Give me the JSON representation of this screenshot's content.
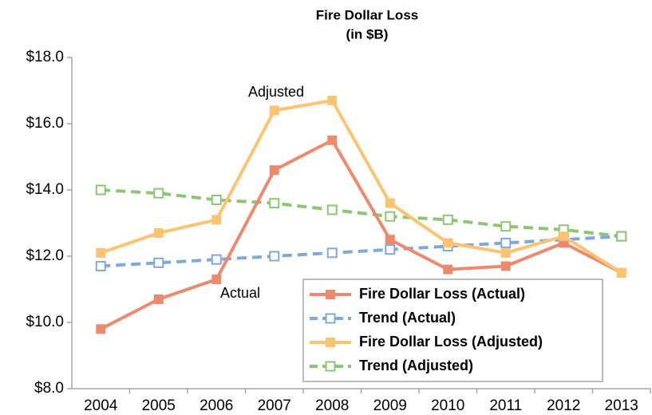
{
  "chart_data": {
    "type": "line",
    "title": "Fire Dollar Loss",
    "subtitle": "(in $B)",
    "categories": [
      "2004",
      "2005",
      "2006",
      "2007",
      "2008",
      "2009",
      "2010",
      "2011",
      "2012",
      "2013"
    ],
    "series": [
      {
        "name": "Fire Dollar Loss (Actual)",
        "color": "#ec8a6e",
        "style": "solid",
        "values": [
          9.8,
          10.7,
          11.3,
          14.6,
          15.5,
          12.5,
          11.6,
          11.7,
          12.4,
          11.5
        ]
      },
      {
        "name": "Trend (Actual)",
        "color": "#7ea9db",
        "style": "dashed",
        "values": [
          11.7,
          11.8,
          11.9,
          12.0,
          12.1,
          12.2,
          12.3,
          12.4,
          12.5,
          12.6
        ]
      },
      {
        "name": "Fire Dollar Loss (Adjusted)",
        "color": "#fcc470",
        "style": "solid",
        "values": [
          12.1,
          12.7,
          13.1,
          16.4,
          16.7,
          13.6,
          12.4,
          12.1,
          12.6,
          11.5
        ]
      },
      {
        "name": "Trend (Adjusted)",
        "color": "#8dc575",
        "style": "dashed",
        "values": [
          14.0,
          13.9,
          13.7,
          13.6,
          13.4,
          13.2,
          13.1,
          12.9,
          12.8,
          12.6
        ]
      }
    ],
    "annotations": [
      "Adjusted",
      "Actual"
    ],
    "ylim": [
      8,
      18
    ],
    "yticks": [
      {
        "value": 8,
        "label": "$8.0"
      },
      {
        "value": 10,
        "label": "$10.0"
      },
      {
        "value": 12,
        "label": "$12.0"
      },
      {
        "value": 14,
        "label": "$14.0"
      },
      {
        "value": 16,
        "label": "$16.0"
      },
      {
        "value": 18,
        "label": "$18.0"
      }
    ],
    "grid": false,
    "legend": "lower right"
  }
}
